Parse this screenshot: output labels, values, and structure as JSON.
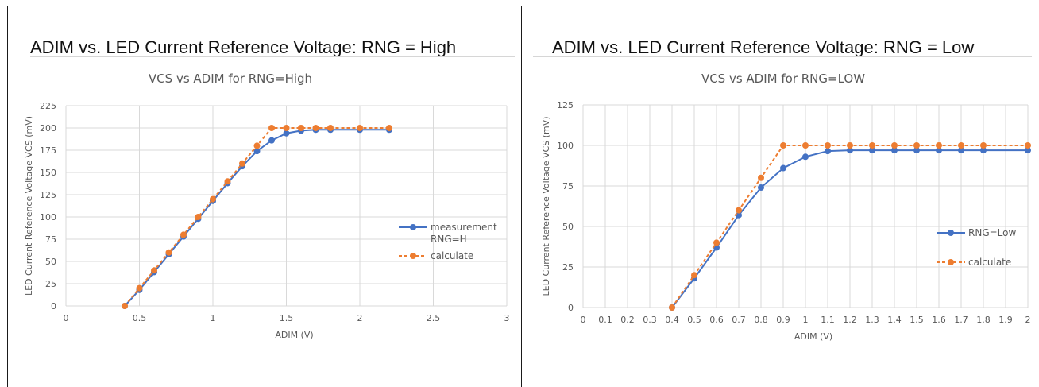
{
  "panels": [
    {
      "heading": "ADIM vs. LED Current Reference Voltage: RNG = High"
    },
    {
      "heading": "ADIM vs. LED Current Reference Voltage: RNG = Low"
    }
  ],
  "chart_data": [
    {
      "type": "line",
      "title": "VCS vs ADIM for RNG=High",
      "xlabel": "ADIM (V)",
      "ylabel": "LED Current Reference Voltage VCS (mV)",
      "xlim": [
        0,
        3
      ],
      "ylim": [
        0,
        225
      ],
      "xticks": [
        0,
        0.5,
        1,
        1.5,
        2,
        2.5,
        3
      ],
      "xtick_labels": [
        "0",
        "0.5",
        "1",
        "1.5",
        "2",
        "2.5",
        "3"
      ],
      "yticks": [
        0,
        25,
        50,
        75,
        100,
        125,
        150,
        175,
        200,
        225
      ],
      "grid": true,
      "legend_position": "right",
      "series": [
        {
          "name": "measurement RNG=H",
          "legend_lines": [
            "measurement",
            "RNG=H"
          ],
          "color": "#4472C4",
          "dashed": false,
          "x": [
            0.4,
            0.5,
            0.6,
            0.7,
            0.8,
            0.9,
            1.0,
            1.1,
            1.2,
            1.3,
            1.4,
            1.5,
            1.6,
            1.7,
            1.8,
            2.0,
            2.2
          ],
          "y": [
            0,
            18,
            38,
            58,
            78,
            98,
            118,
            138,
            157,
            174,
            186,
            194,
            197,
            198,
            198,
            198,
            198
          ]
        },
        {
          "name": "calculate",
          "legend_lines": [
            "calculate"
          ],
          "color": "#ED7D31",
          "dashed": true,
          "x": [
            0.4,
            0.5,
            0.6,
            0.7,
            0.8,
            0.9,
            1.0,
            1.1,
            1.2,
            1.3,
            1.4,
            1.5,
            1.6,
            1.7,
            1.8,
            2.0,
            2.2
          ],
          "y": [
            0,
            20,
            40,
            60,
            80,
            100,
            120,
            140,
            160,
            180,
            200,
            200,
            200,
            200,
            200,
            200,
            200
          ]
        }
      ]
    },
    {
      "type": "line",
      "title": "VCS vs ADIM for RNG=LOW",
      "xlabel": "ADIM (V)",
      "ylabel": "LED Current Reference Voltage VCS (mV)",
      "xlim": [
        0,
        2
      ],
      "ylim": [
        0,
        125
      ],
      "xticks": [
        0,
        0.1,
        0.2,
        0.3,
        0.4,
        0.5,
        0.6,
        0.7,
        0.8,
        0.9,
        1.0,
        1.1,
        1.2,
        1.3,
        1.4,
        1.5,
        1.6,
        1.7,
        1.8,
        1.9,
        2.0
      ],
      "xtick_labels": [
        "0",
        "0.1",
        "0.2",
        "0.3",
        "0.4",
        "0.5",
        "0.6",
        "0.7",
        "0.8",
        "0.9",
        "1",
        "1.1",
        "1.2",
        "1.3",
        "1.4",
        "1.5",
        "1.6",
        "1.7",
        "1.8",
        "1.9",
        "2"
      ],
      "yticks": [
        0,
        25,
        50,
        75,
        100,
        125
      ],
      "grid": true,
      "legend_position": "right",
      "series": [
        {
          "name": "RNG=Low",
          "legend_lines": [
            "RNG=Low"
          ],
          "color": "#4472C4",
          "dashed": false,
          "x": [
            0.4,
            0.5,
            0.6,
            0.7,
            0.8,
            0.9,
            1.0,
            1.1,
            1.2,
            1.3,
            1.4,
            1.5,
            1.6,
            1.7,
            1.8,
            2.0
          ],
          "y": [
            0,
            18,
            37,
            57,
            74,
            86,
            93,
            96.5,
            97,
            97,
            97,
            97,
            97,
            97,
            97,
            97
          ]
        },
        {
          "name": "calculate",
          "legend_lines": [
            "calculate"
          ],
          "color": "#ED7D31",
          "dashed": true,
          "x": [
            0.4,
            0.5,
            0.6,
            0.7,
            0.8,
            0.9,
            1.0,
            1.1,
            1.2,
            1.3,
            1.4,
            1.5,
            1.6,
            1.7,
            1.8,
            2.0
          ],
          "y": [
            0,
            20,
            40,
            60,
            80,
            100,
            100,
            100,
            100,
            100,
            100,
            100,
            100,
            100,
            100,
            100
          ]
        }
      ]
    }
  ]
}
